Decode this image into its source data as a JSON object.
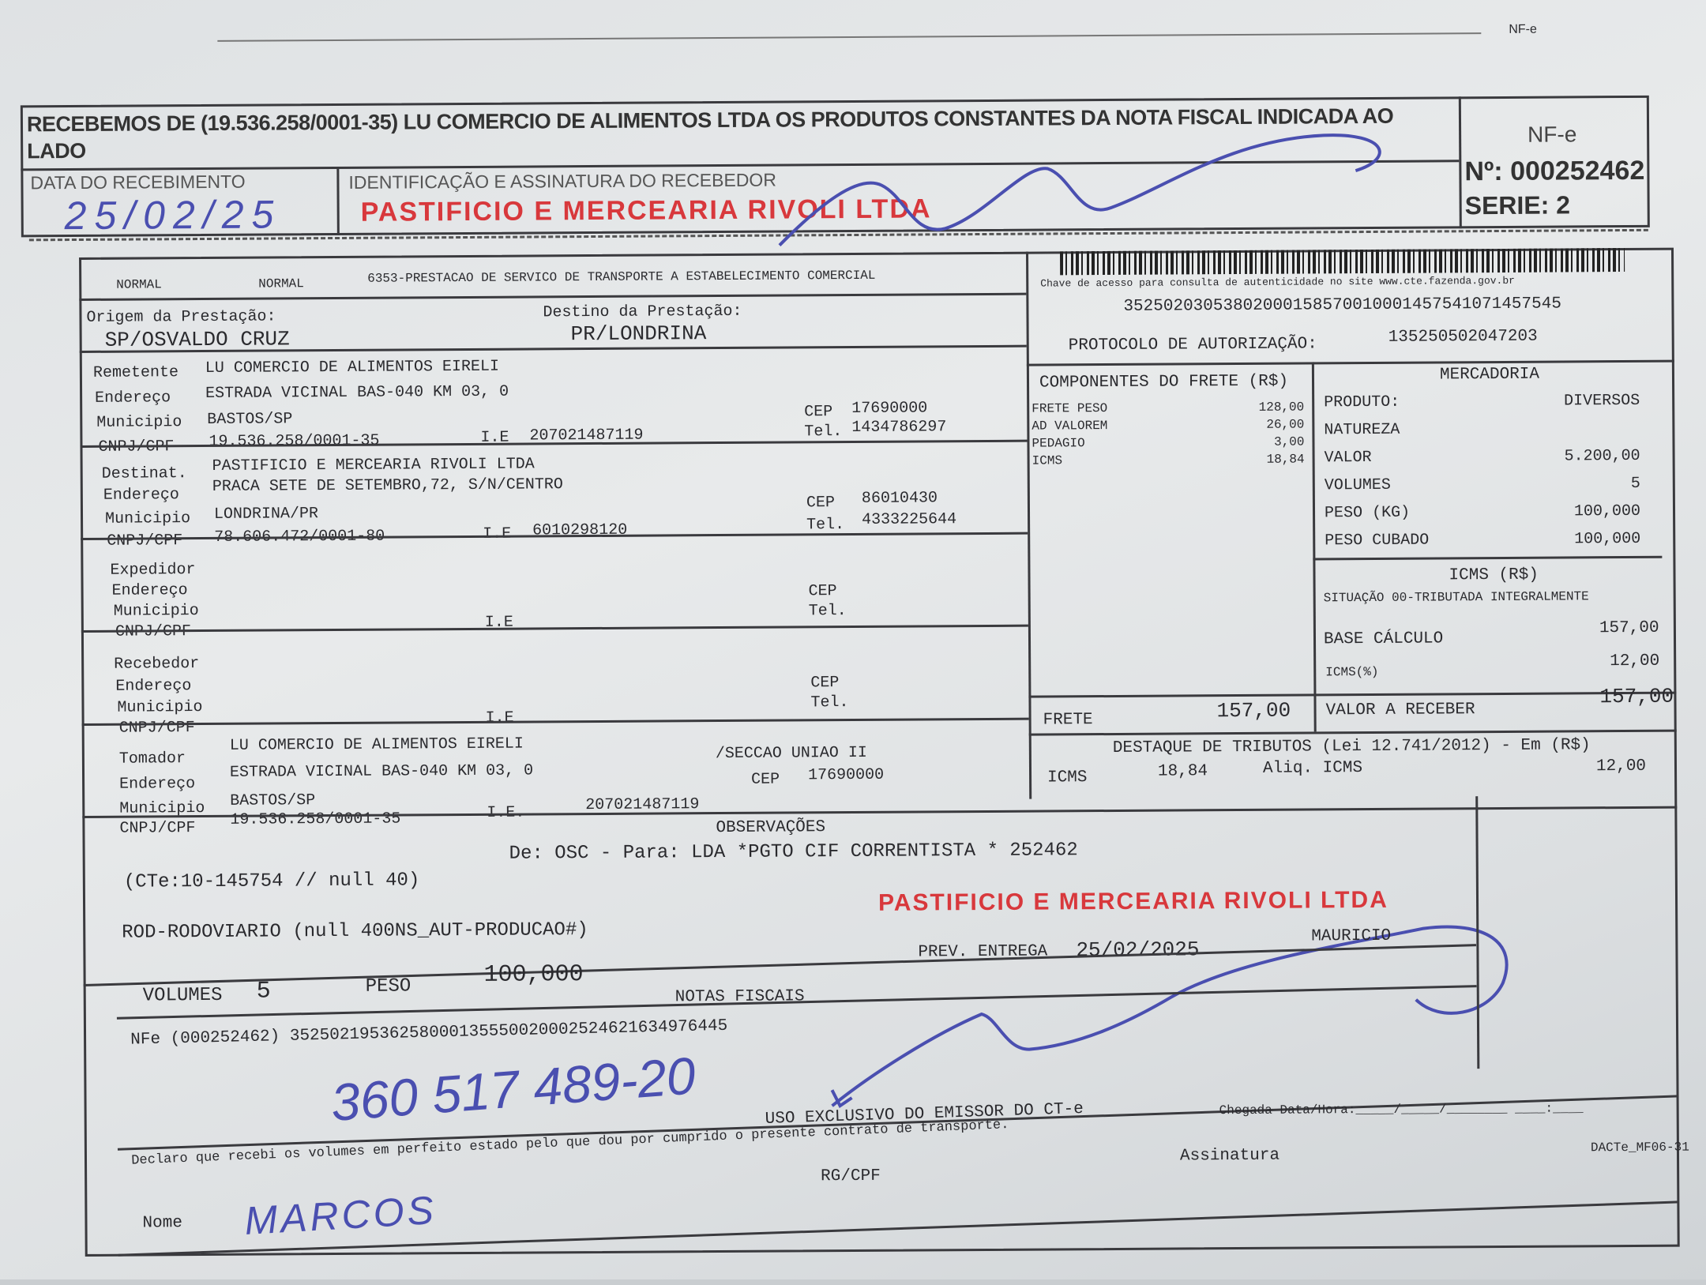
{
  "stub": {
    "received_text": "RECEBEMOS DE (19.536.258/0001-35) LU COMERCIO DE ALIMENTOS LTDA OS PRODUTOS CONSTANTES DA NOTA FISCAL INDICADA AO",
    "received_text_2": "LADO",
    "date_label": "DATA DO RECEBIMENTO",
    "date_handwritten": "25/02/25",
    "id_label": "IDENTIFICAÇÃO E ASSINATURA DO RECEBEDOR",
    "nfe_label": "NF-e",
    "nfe_number": "Nº: 000252462",
    "serie": "SERIE: 2",
    "stamp_text": "PASTIFICIO E MERCEARIA RIVOLI LTDA",
    "corner_text": "NF-e"
  },
  "header": {
    "type1": "NORMAL",
    "type2": "NORMAL",
    "cfop": "6353-PRESTACAO DE SERVICO DE TRANSPORTE A ESTABELECIMENTO COMERCIAL",
    "barcode_caption": "Chave de acesso para consulta de autenticidade no site www.cte.fazenda.gov.br",
    "access_key": "35250203053802000158570010001457541071457545",
    "protocol_label": "PROTOCOLO DE AUTORIZAÇÃO:",
    "protocol_value": "135250502047203"
  },
  "route": {
    "origin_label": "Origem da Prestação:",
    "origin_value": "SP/OSVALDO CRUZ",
    "dest_label": "Destino da Prestação:",
    "dest_value": "PR/LONDRINA"
  },
  "remetente": {
    "label": "Remetente",
    "name": "LU COMERCIO DE ALIMENTOS EIRELI",
    "addr_label": "Endereço",
    "addr": "ESTRADA VICINAL BAS-040  KM 03, 0",
    "mun_label": "Municipio",
    "mun": "BASTOS/SP",
    "cnpj_label": "CNPJ/CPF",
    "cnpj": "19.536.258/0001-35",
    "ie_label": "I.E",
    "ie": "207021487119",
    "cep_label": "CEP",
    "cep": "17690000",
    "tel_label": "Tel.",
    "tel": "1434786297"
  },
  "destinatario": {
    "label": "Destinat.",
    "name": "PASTIFICIO E MERCEARIA RIVOLI LTDA",
    "addr_label": "Endereço",
    "addr": "PRACA SETE DE SETEMBRO,72, S/N/CENTRO",
    "mun_label": "Municipio",
    "mun": "LONDRINA/PR",
    "cnpj_label": "CNPJ/CPF",
    "cnpj": "78.606.472/0001-80",
    "ie_label": "I.E",
    "ie": "6010298120",
    "cep_label": "CEP",
    "cep": "86010430",
    "tel_label": "Tel.",
    "tel": "4333225644"
  },
  "expedidor": {
    "label": "Expedidor",
    "addr_label": "Endereço",
    "mun_label": "Municipio",
    "cnpj_label": "CNPJ/CPF",
    "ie_label": "I.E",
    "cep_label": "CEP",
    "tel_label": "Tel."
  },
  "recebedor": {
    "label": "Recebedor",
    "addr_label": "Endereço",
    "mun_label": "Municipio",
    "cnpj_label": "CNPJ/CPF",
    "ie_label": "I.E",
    "cep_label": "CEP",
    "tel_label": "Tel."
  },
  "tomador": {
    "label": "Tomador",
    "name": "LU COMERCIO DE ALIMENTOS EIRELI",
    "addr_label": "Endereço",
    "addr": "ESTRADA VICINAL BAS-040  KM 03, 0",
    "bairro": "/SECCAO UNIAO II",
    "mun_label": "Municipio",
    "mun": "BASTOS/SP",
    "cnpj_label": "CNPJ/CPF",
    "cnpj": "19.536.258/0001-35",
    "ie_label": "I.E.",
    "ie": "207021487119",
    "cep_label": "CEP",
    "cep": "17690000"
  },
  "componentes": {
    "title": "COMPONENTES DO FRETE (R$)",
    "items": [
      {
        "label": "FRETE PESO",
        "value": "128,00"
      },
      {
        "label": "AD VALOREM",
        "value": "26,00"
      },
      {
        "label": "PEDAGIO",
        "value": "3,00"
      },
      {
        "label": "ICMS",
        "value": "18,84"
      }
    ],
    "frete_label": "FRETE",
    "frete_value": "157,00"
  },
  "mercadoria": {
    "title": "MERCADORIA",
    "items": [
      {
        "label": "PRODUTO:",
        "value": "DIVERSOS"
      },
      {
        "label": "NATUREZA",
        "value": ""
      },
      {
        "label": "VALOR",
        "value": "5.200,00"
      },
      {
        "label": "VOLUMES",
        "value": "5"
      },
      {
        "label": "PESO (KG)",
        "value": "100,000"
      },
      {
        "label": "PESO CUBADO",
        "value": "100,000"
      }
    ]
  },
  "icms": {
    "title": "ICMS (R$)",
    "situacao": "SITUAÇÃO 00-TRIBUTADA INTEGRALMENTE",
    "base_label": "BASE CÁLCULO",
    "base_value": "157,00",
    "aliq_label": "ICMS(%)",
    "aliq_value": "12,00",
    "receber_label": "VALOR A RECEBER",
    "receber_value": "157,00"
  },
  "destaque": {
    "title": "DESTAQUE DE TRIBUTOS (Lei 12.741/2012) - Em (R$)",
    "icms_label": "ICMS",
    "icms_value": "18,84",
    "aliq_label": "Aliq. ICMS",
    "aliq_value": "12,00"
  },
  "observacoes": {
    "title": "OBSERVAÇÕES",
    "line1a": "(CTe:10-145754 // null 40)",
    "line1b": "De: OSC - Para: LDA *PGTO CIF CORRENTISTA * 252462",
    "line2": "ROD-RODOVIARIO (null 400NS_AUT-PRODUCAO#)",
    "prev_label": "PREV. ENTREGA",
    "prev_value": "25/02/2025",
    "driver": "MAURICIO",
    "volumes_label": "VOLUMES",
    "volumes_value": "5",
    "peso_label": "PESO",
    "peso_value": "100,000"
  },
  "notas": {
    "title": "NOTAS FISCAIS",
    "nfe": "NFe (000252462) 35250219536258000135550020002524621634976445",
    "handwritten": "360 517 489-20"
  },
  "footer": {
    "uso": "USO EXCLUSIVO DO EMISSOR DO CT-e",
    "chegada": "Chegada Data/Hora:_____/_____/________   ____:____",
    "declaro": "Declaro que recebi os volumes em perfeito estado pelo que dou por cumprido o presente contrato de transporte.",
    "assinatura": "Assinatura",
    "rgcpf": "RG/CPF",
    "nome_label": "Nome",
    "nome_handwritten": "MARCOS",
    "form_code": "DACTe_MF06-31"
  },
  "colors": {
    "ink": "#2a2a2e",
    "pen": "#4a4fb0",
    "stamp": "#d8383c",
    "paper": "#e3e5e7"
  }
}
